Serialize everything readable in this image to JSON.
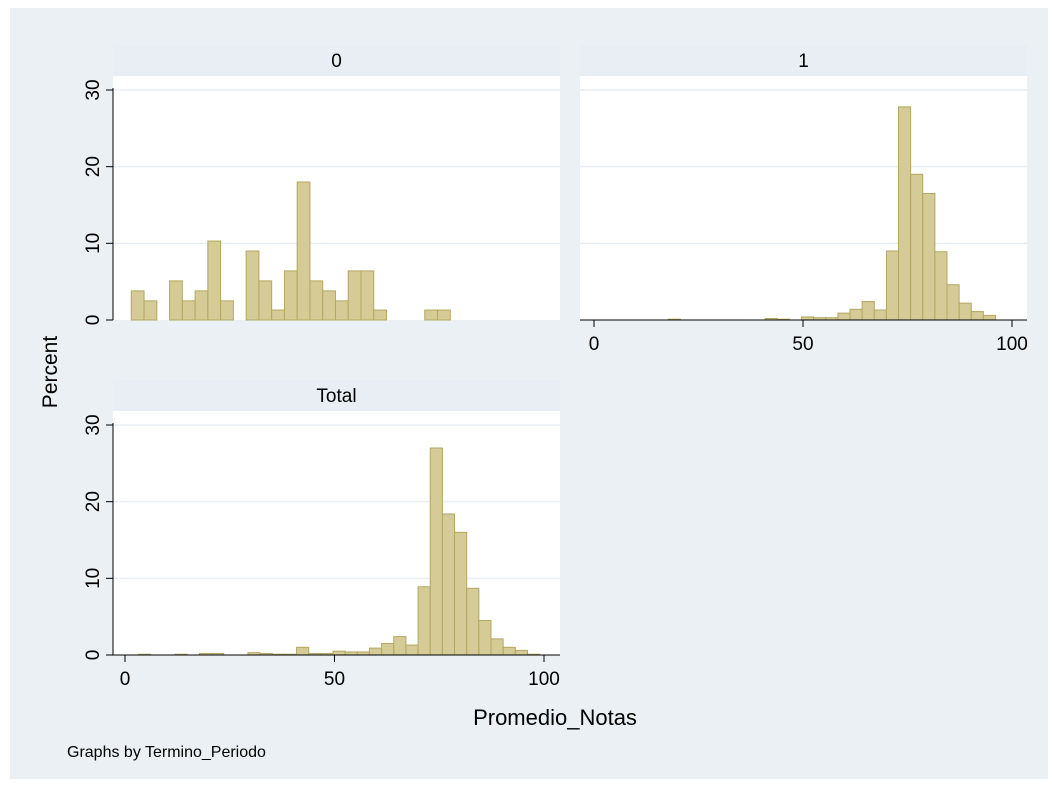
{
  "chart_data": {
    "type": "bar",
    "ylabel": "Percent",
    "xlabel": "Promedio_Notas",
    "note": "Graphs by Termino_Periodo",
    "colors": {
      "bar_fill": "#d5cb97",
      "bar_stroke": "#b3a75f",
      "strip": "#e8eef3",
      "background": "#eaf0f3",
      "plot": "#ffffff",
      "grid": "#e8eef3"
    },
    "x_ticks": [
      0,
      50,
      100
    ],
    "y_ticks": [
      0,
      10,
      20,
      30
    ],
    "xlim": [
      0,
      100
    ],
    "ylim": [
      0,
      30
    ],
    "bin_width": 2.9,
    "panels": [
      {
        "title": "0",
        "show_x_axis": false,
        "bins": [
          {
            "x": 4.7,
            "value": 3.8
          },
          {
            "x": 7.6,
            "value": 2.5
          },
          {
            "x": 13.4,
            "value": 5.1
          },
          {
            "x": 16.3,
            "value": 2.5
          },
          {
            "x": 19.2,
            "value": 3.8
          },
          {
            "x": 22.1,
            "value": 10.3
          },
          {
            "x": 25.0,
            "value": 2.5
          },
          {
            "x": 30.8,
            "value": 9.0
          },
          {
            "x": 33.7,
            "value": 5.1
          },
          {
            "x": 36.6,
            "value": 1.3
          },
          {
            "x": 39.5,
            "value": 6.4
          },
          {
            "x": 42.4,
            "value": 18.0
          },
          {
            "x": 45.3,
            "value": 5.1
          },
          {
            "x": 48.2,
            "value": 3.8
          },
          {
            "x": 51.1,
            "value": 2.5
          },
          {
            "x": 54.0,
            "value": 6.4
          },
          {
            "x": 56.9,
            "value": 6.4
          },
          {
            "x": 59.8,
            "value": 1.3
          },
          {
            "x": 71.4,
            "value": 1.3
          },
          {
            "x": 74.3,
            "value": 1.3
          }
        ]
      },
      {
        "title": "1",
        "show_x_axis": true,
        "bins": [
          {
            "x": 19.2,
            "value": 0.1
          },
          {
            "x": 42.4,
            "value": 0.2
          },
          {
            "x": 45.3,
            "value": 0.1
          },
          {
            "x": 51.1,
            "value": 0.4
          },
          {
            "x": 54.0,
            "value": 0.3
          },
          {
            "x": 56.9,
            "value": 0.3
          },
          {
            "x": 59.8,
            "value": 0.9
          },
          {
            "x": 62.7,
            "value": 1.4
          },
          {
            "x": 65.6,
            "value": 2.4
          },
          {
            "x": 68.5,
            "value": 1.3
          },
          {
            "x": 71.4,
            "value": 9.0
          },
          {
            "x": 74.3,
            "value": 27.8
          },
          {
            "x": 77.2,
            "value": 19.0
          },
          {
            "x": 80.1,
            "value": 16.5
          },
          {
            "x": 83.0,
            "value": 8.9
          },
          {
            "x": 85.9,
            "value": 4.6
          },
          {
            "x": 88.8,
            "value": 2.2
          },
          {
            "x": 91.7,
            "value": 1.1
          },
          {
            "x": 94.6,
            "value": 0.6
          }
        ]
      },
      {
        "title": "Total",
        "show_x_axis": true,
        "bins": [
          {
            "x": 4.7,
            "value": 0.1
          },
          {
            "x": 13.4,
            "value": 0.1
          },
          {
            "x": 19.2,
            "value": 0.2
          },
          {
            "x": 22.1,
            "value": 0.2
          },
          {
            "x": 30.8,
            "value": 0.3
          },
          {
            "x": 33.7,
            "value": 0.2
          },
          {
            "x": 36.6,
            "value": 0.1
          },
          {
            "x": 39.5,
            "value": 0.1
          },
          {
            "x": 42.4,
            "value": 1.0
          },
          {
            "x": 45.3,
            "value": 0.2
          },
          {
            "x": 48.2,
            "value": 0.2
          },
          {
            "x": 51.1,
            "value": 0.5
          },
          {
            "x": 54.0,
            "value": 0.4
          },
          {
            "x": 56.9,
            "value": 0.4
          },
          {
            "x": 59.8,
            "value": 0.9
          },
          {
            "x": 62.7,
            "value": 1.5
          },
          {
            "x": 65.6,
            "value": 2.4
          },
          {
            "x": 68.5,
            "value": 1.3
          },
          {
            "x": 71.4,
            "value": 8.9
          },
          {
            "x": 74.3,
            "value": 27.0
          },
          {
            "x": 77.2,
            "value": 18.4
          },
          {
            "x": 80.1,
            "value": 16.0
          },
          {
            "x": 83.0,
            "value": 8.7
          },
          {
            "x": 85.9,
            "value": 4.5
          },
          {
            "x": 88.8,
            "value": 2.1
          },
          {
            "x": 91.7,
            "value": 1.0
          },
          {
            "x": 94.6,
            "value": 0.6
          },
          {
            "x": 97.5,
            "value": 0.1
          }
        ]
      }
    ]
  }
}
